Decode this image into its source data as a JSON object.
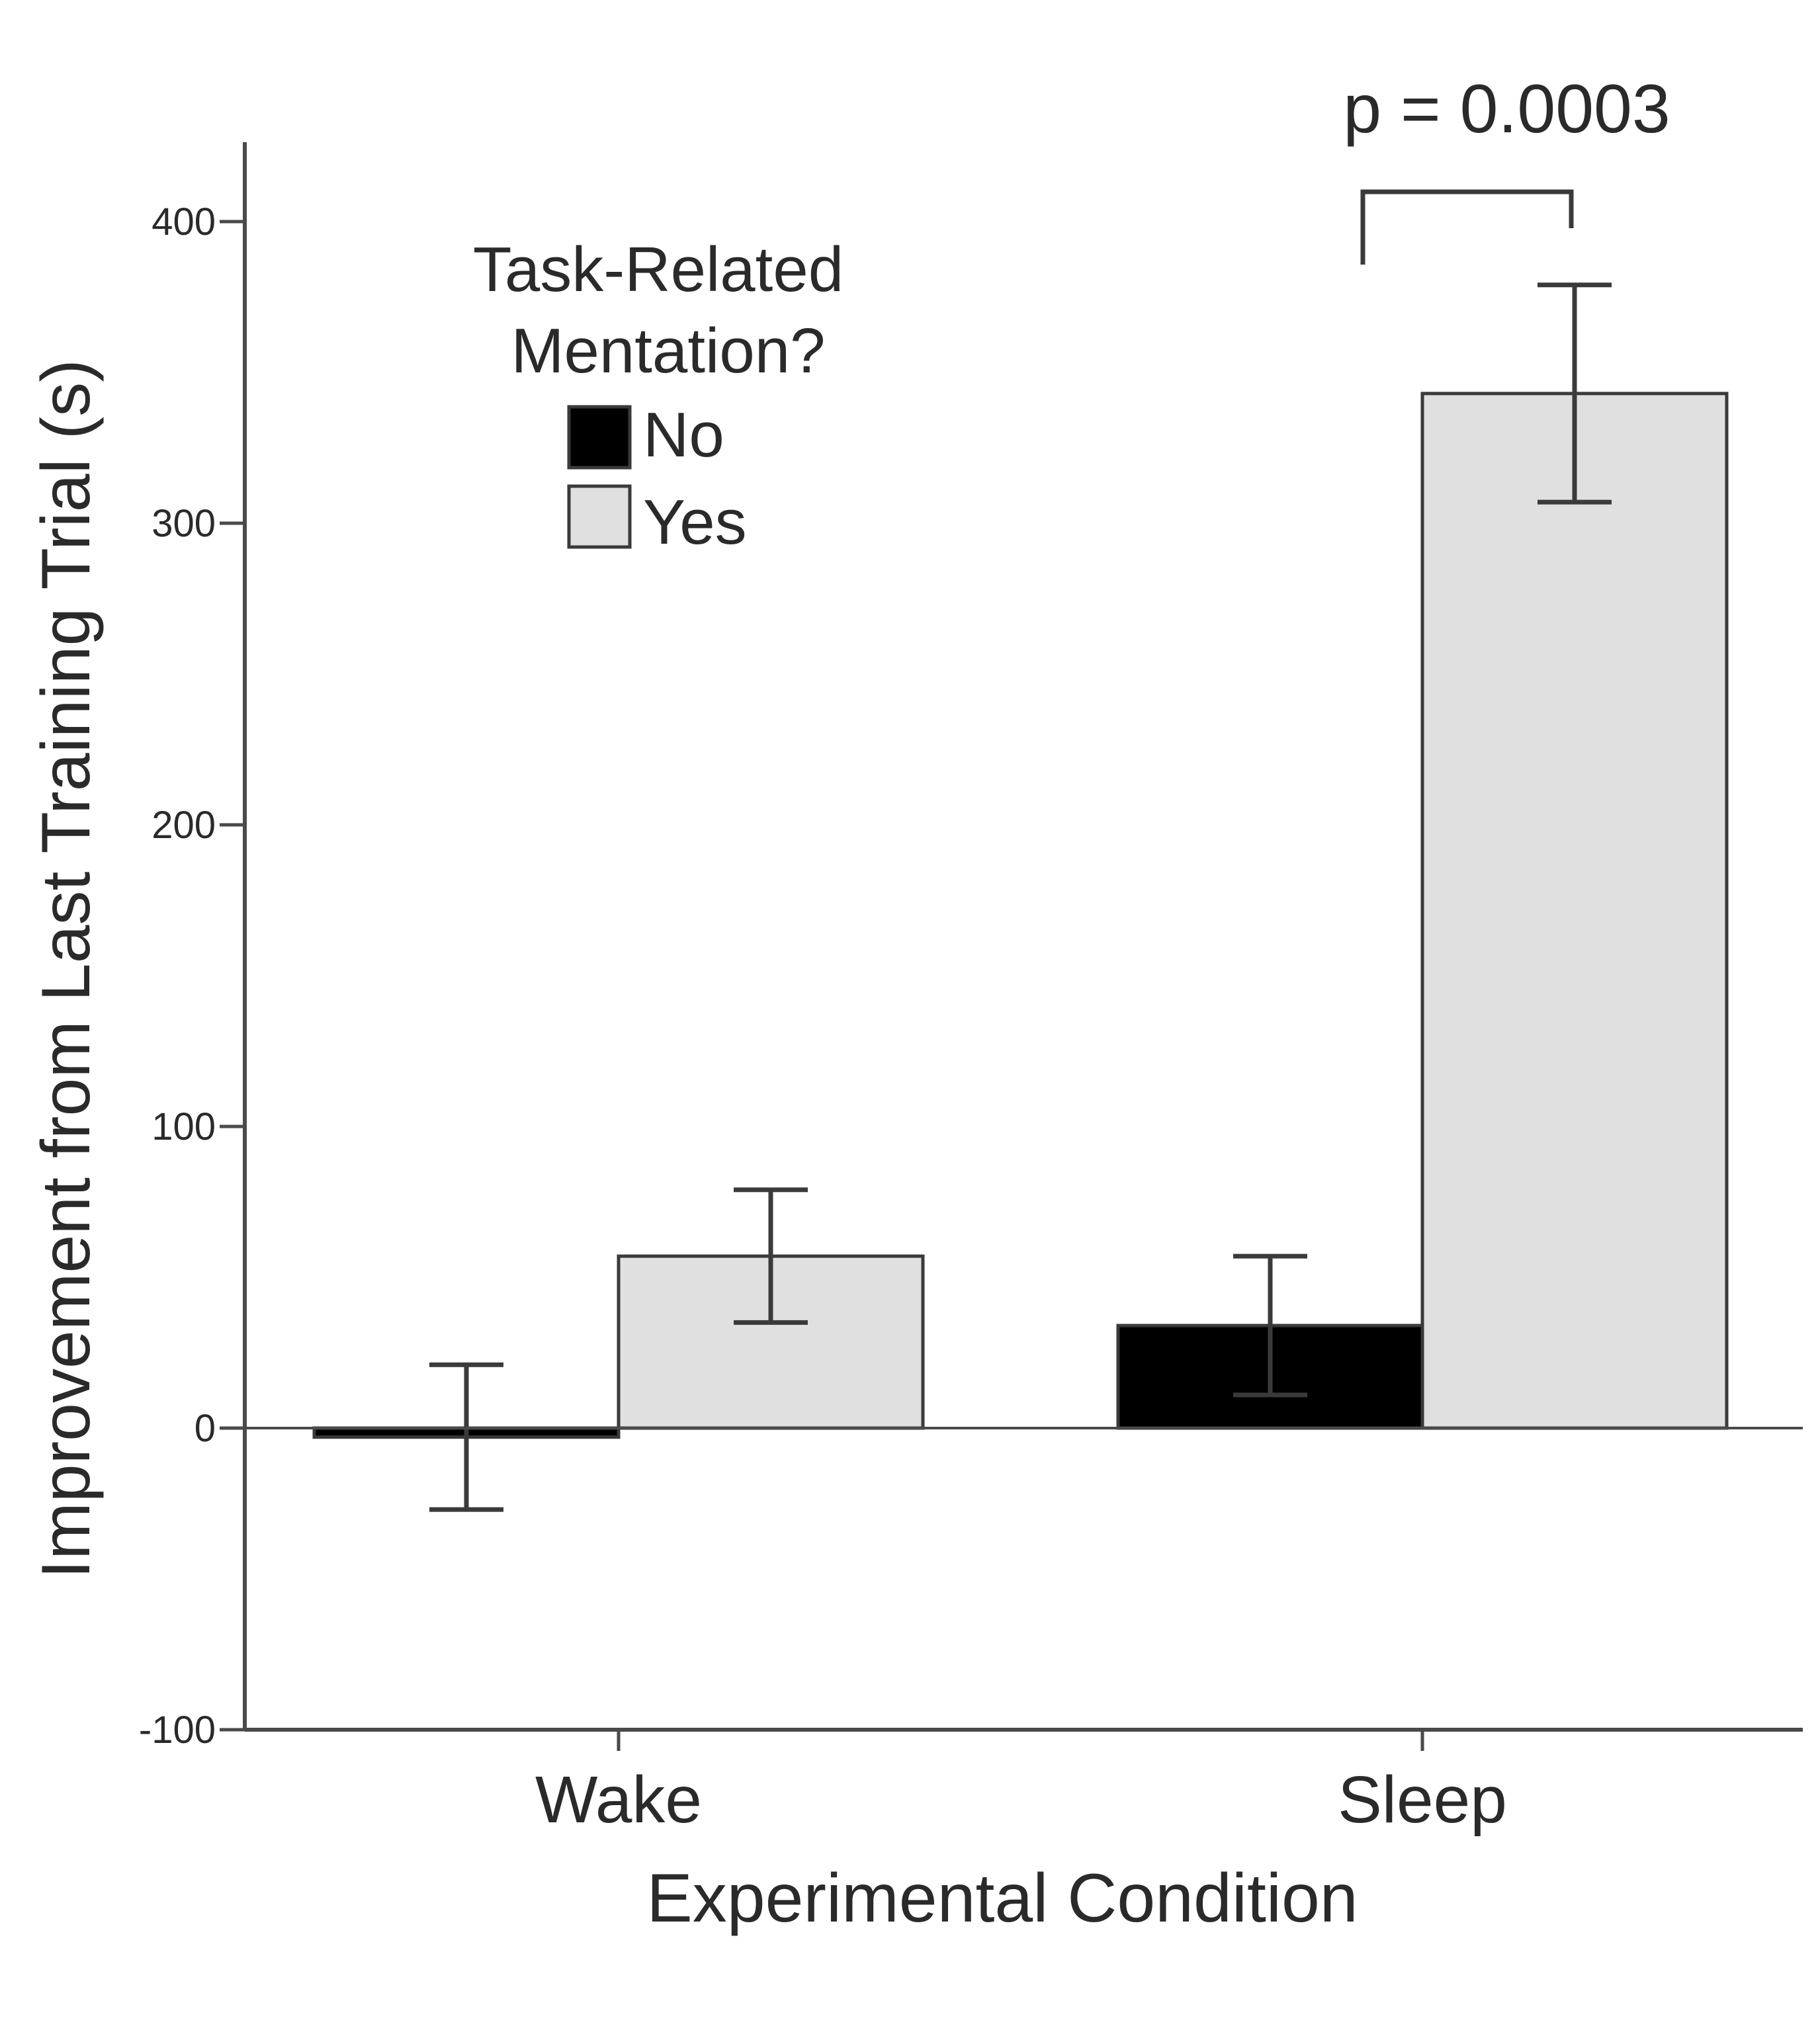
{
  "chart_data": {
    "type": "bar",
    "xlabel": "Experimental Condition",
    "ylabel": "Improvement from Last Training Trial (s)",
    "categories": [
      "Wake",
      "Sleep"
    ],
    "ylim": [
      -100,
      430
    ],
    "yticks": [
      -100,
      0,
      100,
      200,
      300,
      400
    ],
    "ytick_labels": [
      "-100",
      "0",
      "100",
      "200",
      "300",
      "400"
    ],
    "legend": {
      "title_lines": [
        "Task-Related",
        "Mentation?"
      ],
      "placement": "top-left"
    },
    "series": [
      {
        "name": "No",
        "color": "#000000",
        "values": [
          -3,
          34
        ],
        "errors": [
          24,
          23
        ]
      },
      {
        "name": "Yes",
        "color": "#e0e0e0",
        "values": [
          57,
          343
        ],
        "errors": [
          22,
          36
        ]
      }
    ],
    "annotations": [
      {
        "text": "p = 0.0003",
        "between": [
          "Sleep:No",
          "Sleep:Yes"
        ]
      }
    ]
  }
}
